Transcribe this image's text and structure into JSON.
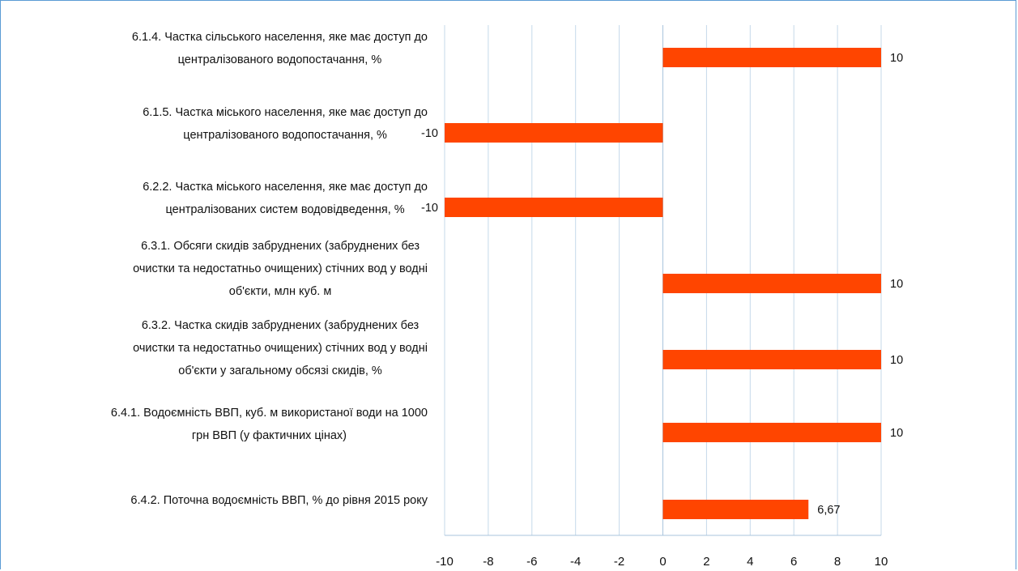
{
  "chart_data": {
    "type": "bar",
    "orientation": "horizontal",
    "title": "",
    "xlabel": "",
    "ylabel": "",
    "xlim": [
      -10,
      10
    ],
    "xticks": [
      -10,
      -8,
      -6,
      -4,
      -2,
      0,
      2,
      4,
      6,
      8,
      10
    ],
    "grid": true,
    "bar_color": "#ff4500",
    "grid_color": "#c5d9ea",
    "categories": [
      [
        "6.1.4. Частка сільського  населення, яке має доступ до",
        "централізованого водопостачання,  %"
      ],
      [
        "6.1.5. Частка міського  населення, яке має доступ до",
        "централізованого водопостачання,  %"
      ],
      [
        "6.2.2. Частка міського  населення, яке має доступ до",
        "централізованих систем  водовідведення, %"
      ],
      [
        "6.3.1. Обсяги скидів забруднених (забруднених без",
        "очистки та недостатньо очищених) стічних вод у водні",
        "об'єкти, млн куб. м"
      ],
      [
        "6.3.2. Частка скидів забруднених (забруднених без",
        "очистки та недостатньо очищених) стічних вод у водні",
        "об'єкти у загальному обсязі скидів,  %"
      ],
      [
        "6.4.1. Водоємність ВВП, куб. м використаної води на 1000",
        "грн ВВП (у фактичних цінах)"
      ],
      [
        "6.4.2. Поточна водоємність  ВВП, % до рівня 2015 року"
      ]
    ],
    "values": [
      10,
      -10,
      -10,
      10,
      10,
      10,
      6.67
    ],
    "value_labels": [
      "10",
      "-10",
      "-10",
      "10",
      "10",
      "10",
      "6,67"
    ]
  }
}
